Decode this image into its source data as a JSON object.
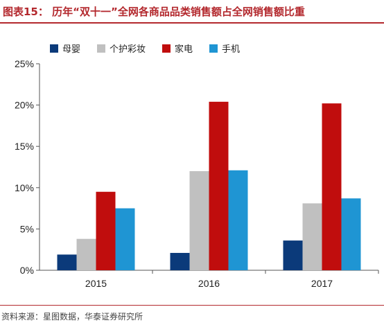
{
  "title": "图表15：  历年“双十一”全网各商品品类销售额占全网销售额比重",
  "source": "资料来源：星图数据，华泰证券研究所",
  "chart_data": {
    "type": "bar",
    "categories": [
      "2015",
      "2016",
      "2017"
    ],
    "series": [
      {
        "name": "母婴",
        "color": "#0b3a7a",
        "values": [
          1.9,
          2.1,
          3.6
        ]
      },
      {
        "name": "个护彩妆",
        "color": "#c0c0c0",
        "values": [
          3.8,
          12.0,
          8.1
        ]
      },
      {
        "name": "家电",
        "color": "#c00d0d",
        "values": [
          9.5,
          20.4,
          20.2
        ]
      },
      {
        "name": "手机",
        "color": "#1f95d3",
        "values": [
          7.5,
          12.1,
          8.7
        ]
      }
    ],
    "ylim": [
      0,
      25
    ],
    "yticks": [
      0,
      5,
      10,
      15,
      20,
      25
    ],
    "ytick_labels": [
      "0%",
      "5%",
      "10%",
      "15%",
      "20%",
      "25%"
    ],
    "grid": false,
    "legend_placement": "top-left"
  }
}
